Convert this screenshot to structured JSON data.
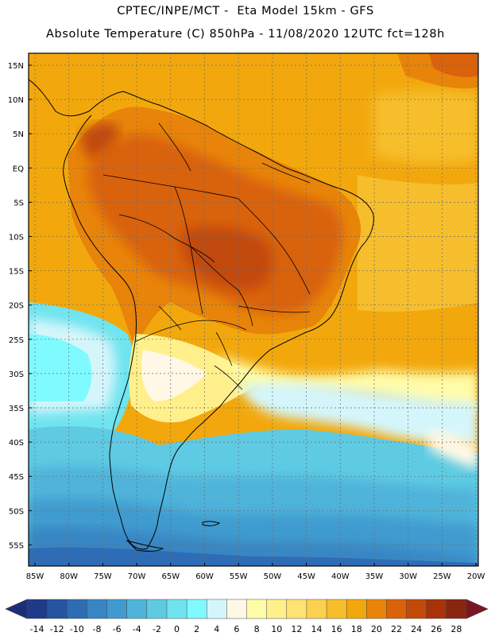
{
  "title_line1": "CPTEC/INPE/MCT -  Eta Model 15km - GFS",
  "title_line2": "Absolute Temperature (C) 850hPa - 11/08/2020 12UTC fct=128h",
  "map": {
    "lat_labels": [
      "15N",
      "10N",
      "5N",
      "EQ",
      "5S",
      "10S",
      "15S",
      "20S",
      "25S",
      "30S",
      "35S",
      "40S",
      "45S",
      "50S",
      "55S"
    ],
    "lon_labels": [
      "85W",
      "80W",
      "75W",
      "70W",
      "65W",
      "60W",
      "55W",
      "50W",
      "45W",
      "40W",
      "35W",
      "30W",
      "25W",
      "20W"
    ]
  },
  "colorbar": {
    "labels": [
      "-14",
      "-12",
      "-10",
      "-8",
      "-6",
      "-4",
      "-2",
      "0",
      "2",
      "4",
      "6",
      "8",
      "10",
      "12",
      "14",
      "16",
      "18",
      "20",
      "22",
      "24",
      "26",
      "28"
    ],
    "colors": [
      "#1f3a8a",
      "#26549f",
      "#2e6db5",
      "#3785c3",
      "#3f9bcf",
      "#4fb3da",
      "#5ecbe3",
      "#6fe4ef",
      "#7ffbff",
      "#d4f6fb",
      "#fff8e6",
      "#fffca8",
      "#fff08c",
      "#fee272",
      "#fbd14f",
      "#f6be2c",
      "#f2a80c",
      "#e8840a",
      "#d9620a",
      "#c24a09",
      "#a83209",
      "#892610"
    ],
    "under_color": "#1c2e7a",
    "over_color": "#7a1522"
  }
}
